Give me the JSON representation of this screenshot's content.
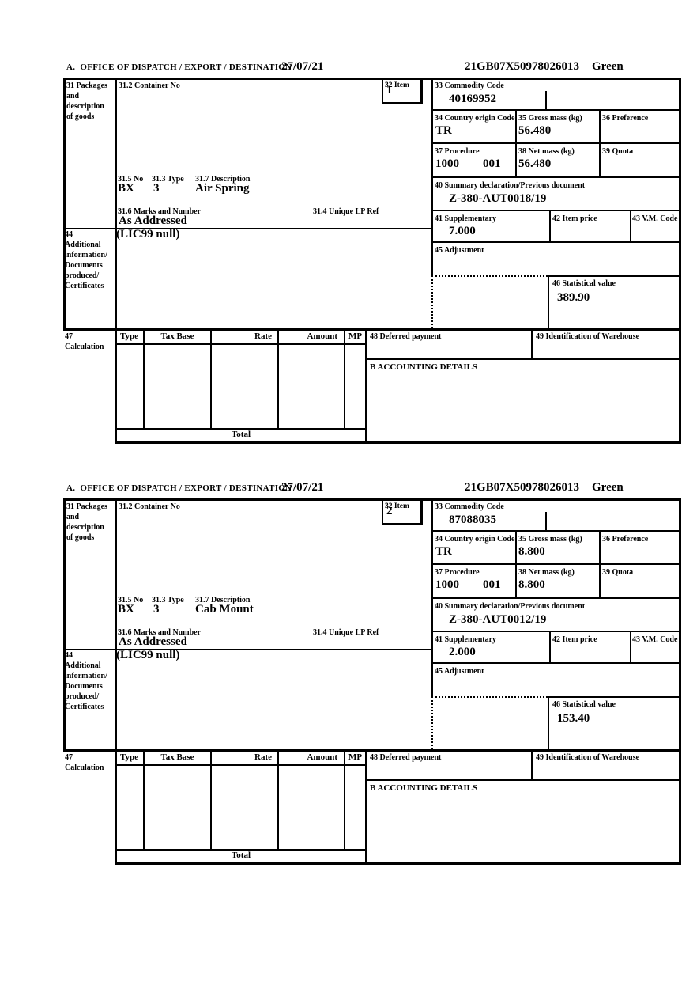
{
  "labels": {
    "office": "A.  OFFICE OF DISPATCH / EXPORT / DESTINATION",
    "b31": [
      "31 Packages",
      "and",
      "description",
      "of goods"
    ],
    "b31_2": "31.2 Container No",
    "b32": "32 Item",
    "b33": "33 Commodity Code",
    "b34": "34 Country origin Code",
    "b35": "35 Gross mass (kg)",
    "b36": "36 Preference",
    "b37": "37 Procedure",
    "b38": "38 Net mass (kg)",
    "b39": "39 Quota",
    "b31_5": "31.5 No",
    "b31_3": "31.3 Type",
    "b31_7": "31.7 Description",
    "b31_6": "31.6 Marks and Number",
    "b31_4": "31.4 Unique LP Ref",
    "b40": "40 Summary declaration/Previous document",
    "b41": "41 Supplementary",
    "b42": "42 Item price",
    "b43": "43 V.M. Code",
    "b44": [
      "44",
      "Additional",
      "information/",
      "Documents",
      "produced/",
      "Certificates"
    ],
    "b45": "45 Adjustment",
    "b46": "46 Statistical value",
    "b47": [
      "47",
      "Calculation"
    ],
    "b48": "48 Deferred payment",
    "b49": "49 Identification of Warehouse",
    "b_accounting": "B ACCOUNTING DETAILS",
    "col_type": "Type",
    "col_tax_base": "Tax Base",
    "col_rate": "Rate",
    "col_amount": "Amount",
    "col_mp": "MP",
    "total": "Total"
  },
  "sections": [
    {
      "date": "27/07/21",
      "mrn": "21GB07X50978026013",
      "routing": "Green",
      "item": "1",
      "commodity_code": "40169952",
      "country_origin": "TR",
      "gross_mass": "56.480",
      "procedure": "1000",
      "procedure_suffix": "001",
      "net_mass": "56.480",
      "package_no": "BX",
      "package_type": "3",
      "description": "Air Spring",
      "marks": "As Addressed",
      "previous_document": "Z-380-AUT0018/19",
      "supplementary": "7.000",
      "additional_info": "(LIC99 null)",
      "statistical_value": "389.90"
    },
    {
      "date": "27/07/21",
      "mrn": "21GB07X50978026013",
      "routing": "Green",
      "item": "2",
      "commodity_code": "87088035",
      "country_origin": "TR",
      "gross_mass": "8.800",
      "procedure": "1000",
      "procedure_suffix": "001",
      "net_mass": "8.800",
      "package_no": "BX",
      "package_type": "3",
      "description": "Cab Mount",
      "marks": "As Addressed",
      "previous_document": "Z-380-AUT0012/19",
      "supplementary": "2.000",
      "additional_info": "(LIC99 null)",
      "statistical_value": "153.40"
    }
  ]
}
